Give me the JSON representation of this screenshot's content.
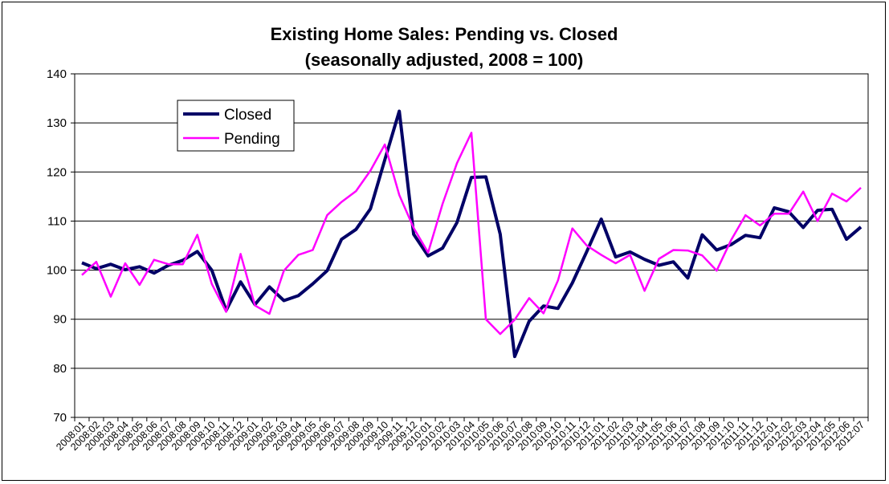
{
  "chart_data": {
    "type": "line",
    "title": "Existing Home Sales:  Pending vs. Closed",
    "subtitle": "(seasonally adjusted, 2008 = 100)",
    "xlabel": "",
    "ylabel": "",
    "ylim": [
      70,
      140
    ],
    "yticks": [
      70,
      80,
      90,
      100,
      110,
      120,
      130,
      140
    ],
    "grid": true,
    "legend_position": "top-left",
    "x": [
      "2008:01",
      "2008:02",
      "2008:03",
      "2008:04",
      "2008:05",
      "2008:06",
      "2008:07",
      "2008:08",
      "2008:09",
      "2008:10",
      "2008:11",
      "2008:12",
      "2009:01",
      "2009:02",
      "2009:03",
      "2009:04",
      "2009:05",
      "2009:06",
      "2009:07",
      "2009:08",
      "2009:09",
      "2009:10",
      "2009:11",
      "2009:12",
      "2010:01",
      "2010:02",
      "2010:03",
      "2010:04",
      "2010:05",
      "2010:06",
      "2010:07",
      "2010:08",
      "2010:09",
      "2010:10",
      "2010:11",
      "2010:12",
      "2011:01",
      "2011:02",
      "2011:03",
      "2011:04",
      "2011:05",
      "2011:06",
      "2011:07",
      "2011:08",
      "2011:09",
      "2011:10",
      "2011:11",
      "2011:12",
      "2012:01",
      "2012:02",
      "2012:03",
      "2012:04",
      "2012:05",
      "2012:06",
      "2012:07"
    ],
    "series": [
      {
        "name": "Closed",
        "color": "#000066",
        "values": [
          101.5,
          100.3,
          101.2,
          100.1,
          100.7,
          99.4,
          101.0,
          102.0,
          103.8,
          100.0,
          91.8,
          97.6,
          93.0,
          96.6,
          93.8,
          94.8,
          97.2,
          99.9,
          106.3,
          108.3,
          112.5,
          122.5,
          132.4,
          107.3,
          102.9,
          104.5,
          109.7,
          118.9,
          119.0,
          107.3,
          82.4,
          89.6,
          92.7,
          92.2,
          97.4,
          103.8,
          110.4,
          102.7,
          103.7,
          102.2,
          101.0,
          101.7,
          98.4,
          107.2,
          104.1,
          105.2,
          107.1,
          106.6,
          112.7,
          111.9,
          108.7,
          112.2,
          112.4,
          106.3,
          108.8
        ]
      },
      {
        "name": "Pending",
        "color": "#ff00ff",
        "values": [
          99.0,
          101.7,
          94.6,
          101.4,
          97.0,
          102.1,
          101.2,
          101.2,
          107.2,
          97.2,
          91.5,
          103.3,
          92.8,
          91.1,
          99.9,
          103.1,
          104.1,
          111.2,
          113.9,
          116.1,
          120.3,
          125.6,
          115.3,
          108.6,
          103.6,
          113.5,
          121.8,
          128.0,
          90.0,
          87.0,
          89.9,
          94.3,
          91.2,
          97.9,
          108.5,
          105.0,
          103.1,
          101.4,
          103.1,
          95.8,
          102.3,
          104.1,
          104.0,
          103.0,
          99.9,
          106.1,
          111.2,
          109.1,
          111.5,
          111.5,
          116.0,
          110.0,
          115.6,
          114.0,
          116.8
        ]
      }
    ]
  }
}
